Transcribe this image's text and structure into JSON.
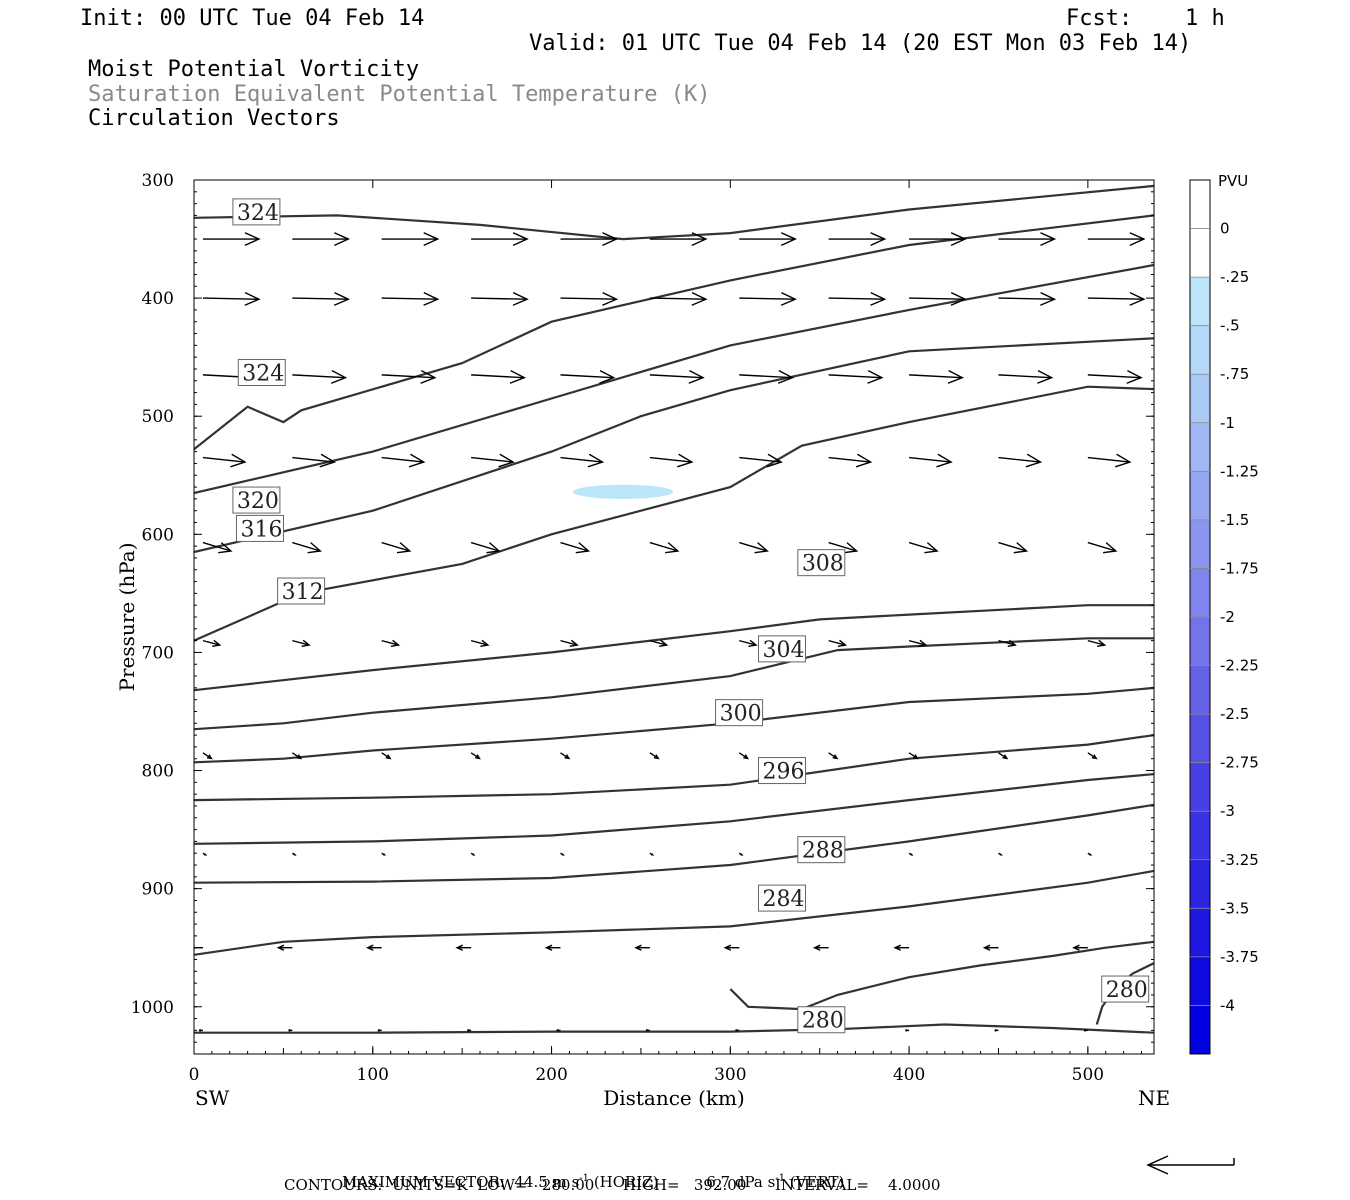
{
  "header": {
    "init": "Init: 00 UTC Tue 04 Feb 14",
    "fcst_label": "Fcst:",
    "fcst_value": "1 h",
    "valid": "Valid: 01 UTC Tue 04 Feb 14 (20 EST Mon 03 Feb 14)",
    "title1": "Moist Potential Vorticity",
    "title2": "Saturation Equivalent Potential Temperature (K)",
    "title3": "Circulation Vectors"
  },
  "colors": {
    "contour": "#333333",
    "vector": "#000000",
    "pv_fill": "#b9e6fb"
  },
  "chart_data": {
    "type": "cross-section",
    "xlabel": "Distance (km)",
    "ylabel": "Pressure (hPa)",
    "xlim": [
      0,
      537
    ],
    "ylim": [
      1040,
      300
    ],
    "y_scale": "linear-inverted",
    "x_ticks": [
      0,
      100,
      200,
      300,
      400,
      500
    ],
    "y_ticks": [
      300,
      400,
      500,
      600,
      700,
      800,
      900,
      1000
    ],
    "left_endpoint": "SW",
    "right_endpoint": "NE",
    "contours": [
      {
        "level": 280,
        "label": "280",
        "points": [
          [
            0,
            1022
          ],
          [
            100,
            1022
          ],
          [
            200,
            1021
          ],
          [
            300,
            1021
          ],
          [
            360,
            1019
          ],
          [
            420,
            1015
          ],
          [
            480,
            1018
          ],
          [
            537,
            1022
          ]
        ],
        "label_at": [
          340,
          1011
        ]
      },
      {
        "level": 280,
        "label": "280",
        "points": [
          [
            300,
            985
          ],
          [
            310,
            1000
          ],
          [
            340,
            1002
          ],
          [
            360,
            990
          ],
          [
            400,
            975
          ],
          [
            440,
            965
          ],
          [
            480,
            957
          ],
          [
            510,
            950
          ],
          [
            537,
            945
          ]
        ],
        "label_at": [
          510,
          985
        ]
      },
      {
        "level": 280,
        "label": "",
        "points": [
          [
            505,
            1015
          ],
          [
            508,
            1000
          ],
          [
            515,
            985
          ],
          [
            525,
            972
          ],
          [
            537,
            963
          ]
        ],
        "label_at": null
      },
      {
        "level": 284,
        "label": "284",
        "points": [
          [
            0,
            956
          ],
          [
            50,
            945
          ],
          [
            100,
            941
          ],
          [
            200,
            937
          ],
          [
            300,
            932
          ],
          [
            400,
            915
          ],
          [
            500,
            895
          ],
          [
            537,
            885
          ]
        ],
        "label_at": [
          318,
          908
        ]
      },
      {
        "level": 288,
        "label": "288",
        "points": [
          [
            0,
            895
          ],
          [
            100,
            894
          ],
          [
            200,
            891
          ],
          [
            300,
            880
          ],
          [
            400,
            860
          ],
          [
            500,
            838
          ],
          [
            537,
            829
          ]
        ],
        "label_at": [
          340,
          867
        ]
      },
      {
        "level": 292,
        "label": "",
        "points": [
          [
            0,
            862
          ],
          [
            100,
            860
          ],
          [
            200,
            855
          ],
          [
            300,
            843
          ],
          [
            400,
            825
          ],
          [
            500,
            808
          ],
          [
            537,
            803
          ]
        ],
        "label_at": null
      },
      {
        "level": 296,
        "label": "296",
        "points": [
          [
            0,
            825
          ],
          [
            100,
            823
          ],
          [
            200,
            820
          ],
          [
            300,
            812
          ],
          [
            400,
            790
          ],
          [
            500,
            778
          ],
          [
            537,
            770
          ]
        ],
        "label_at": [
          318,
          800
        ]
      },
      {
        "level": 300,
        "label": "300",
        "points": [
          [
            0,
            793
          ],
          [
            50,
            790
          ],
          [
            100,
            783
          ],
          [
            200,
            773
          ],
          [
            300,
            760
          ],
          [
            400,
            742
          ],
          [
            500,
            735
          ],
          [
            537,
            730
          ]
        ],
        "label_at": [
          294,
          751
        ]
      },
      {
        "level": 304,
        "label": "304",
        "points": [
          [
            0,
            765
          ],
          [
            50,
            760
          ],
          [
            100,
            751
          ],
          [
            200,
            738
          ],
          [
            300,
            720
          ],
          [
            360,
            698
          ],
          [
            400,
            695
          ],
          [
            500,
            688
          ],
          [
            537,
            688
          ]
        ],
        "label_at": [
          318,
          697
        ]
      },
      {
        "level": 308,
        "label": "308",
        "points": [
          [
            0,
            732
          ],
          [
            100,
            715
          ],
          [
            200,
            700
          ],
          [
            300,
            682
          ],
          [
            350,
            672
          ],
          [
            400,
            668
          ],
          [
            500,
            660
          ],
          [
            537,
            660
          ]
        ],
        "label_at": [
          340,
          624
        ]
      },
      {
        "level": 312,
        "label": "312",
        "points": [
          [
            0,
            690
          ],
          [
            60,
            650
          ],
          [
            150,
            625
          ],
          [
            200,
            600
          ],
          [
            300,
            560
          ],
          [
            340,
            525
          ],
          [
            400,
            505
          ],
          [
            500,
            475
          ],
          [
            537,
            477
          ]
        ],
        "label_at": [
          49,
          648
        ]
      },
      {
        "level": 316,
        "label": "316",
        "points": [
          [
            0,
            615
          ],
          [
            100,
            580
          ],
          [
            200,
            530
          ],
          [
            250,
            500
          ],
          [
            300,
            478
          ],
          [
            400,
            445
          ],
          [
            537,
            434
          ]
        ],
        "label_at": [
          26,
          595
        ]
      },
      {
        "level": 320,
        "label": "320",
        "points": [
          [
            0,
            565
          ],
          [
            100,
            530
          ],
          [
            200,
            485
          ],
          [
            300,
            440
          ],
          [
            400,
            410
          ],
          [
            537,
            372
          ]
        ],
        "label_at": [
          24,
          571
        ]
      },
      {
        "level": 324,
        "label": "324",
        "points": [
          [
            0,
            528
          ],
          [
            30,
            492
          ],
          [
            50,
            505
          ],
          [
            60,
            495
          ],
          [
            150,
            455
          ],
          [
            200,
            420
          ],
          [
            300,
            385
          ],
          [
            400,
            355
          ],
          [
            537,
            330
          ]
        ],
        "label_at": [
          27,
          463
        ]
      },
      {
        "level": 324,
        "label": "324",
        "points": [
          [
            0,
            332
          ],
          [
            80,
            330
          ],
          [
            160,
            338
          ],
          [
            240,
            350
          ],
          [
            300,
            345
          ],
          [
            400,
            325
          ],
          [
            537,
            305
          ]
        ],
        "label_at": [
          24,
          327
        ]
      }
    ],
    "pv_shaded": [
      {
        "label": "-0.25 to 0 PVU",
        "center": [
          240,
          564
        ],
        "rx": 28,
        "ry": 6
      }
    ],
    "vectors": [
      {
        "p": 350,
        "xs": [
          5,
          55,
          105,
          155,
          205,
          255,
          305,
          355,
          400,
          450,
          500
        ],
        "u": 1.0,
        "w": 0.0
      },
      {
        "p": 400,
        "xs": [
          5,
          55,
          105,
          155,
          205,
          255,
          305,
          355,
          400,
          450,
          500
        ],
        "u": 1.0,
        "w": 0.02
      },
      {
        "p": 465,
        "xs": [
          5,
          55,
          105,
          155,
          205,
          255,
          305,
          355,
          400,
          450,
          500
        ],
        "u": 0.95,
        "w": 0.05
      },
      {
        "p": 535,
        "xs": [
          5,
          55,
          105,
          155,
          205,
          255,
          305,
          355,
          400,
          450,
          500
        ],
        "u": 0.75,
        "w": 0.08
      },
      {
        "p": 607,
        "xs": [
          5,
          55,
          105,
          155,
          205,
          255,
          305,
          355,
          400,
          450,
          500
        ],
        "u": 0.5,
        "w": 0.15
      },
      {
        "p": 690,
        "xs": [
          5,
          55,
          105,
          155,
          205,
          255,
          305,
          355,
          400,
          450,
          500
        ],
        "u": 0.3,
        "w": 0.08
      },
      {
        "p": 785,
        "xs": [
          5,
          55,
          105,
          155,
          205,
          255,
          305,
          355,
          400,
          450,
          500
        ],
        "u": 0.15,
        "w": 0.1
      },
      {
        "p": 870,
        "xs": [
          5,
          55,
          105,
          155,
          205,
          255,
          305,
          355,
          400,
          450,
          500
        ],
        "u": 0.05,
        "w": 0.03
      },
      {
        "p": 950,
        "xs": [
          5,
          55,
          105,
          155,
          205,
          255,
          305,
          355,
          400,
          450,
          500
        ],
        "u": -0.25,
        "w": 0.0
      },
      {
        "p": 1020,
        "xs": [
          5,
          55,
          105,
          155,
          205,
          255,
          305,
          355,
          400,
          450,
          500
        ],
        "u": -0.05,
        "w": 0.0
      }
    ],
    "colorbar": {
      "title": "PVU",
      "labels": [
        "0",
        "-.25",
        "-.5",
        "-.75",
        "-1",
        "-1.25",
        "-1.5",
        "-1.75",
        "-2",
        "-2.25",
        "-2.5",
        "-2.75",
        "-3",
        "-3.25",
        "-3.5",
        "-3.75",
        "-4"
      ],
      "colors": [
        "#ffffff",
        "#ffffff",
        "#bde5fb",
        "#b3d8f9",
        "#aac9f6",
        "#a0b8f3",
        "#95a6f1",
        "#8b95ee",
        "#8084ec",
        "#7473ea",
        "#6662e8",
        "#5751e6",
        "#4840e4",
        "#3a32e3",
        "#2b25e2",
        "#1d17e1",
        "#0f0ae0",
        "#0000e0"
      ]
    }
  },
  "footer": {
    "max_vector_label": "MAXIMUM VECTOR:",
    "max_vector_horiz": "44.5",
    "max_vector_horiz_units": "m s",
    "max_vector_horiz_exp": "-1",
    "max_vector_horiz_tag": "(HORIZ)",
    "max_vector_vert": "6.7",
    "max_vector_vert_units": "dPa s",
    "max_vector_vert_exp": "-1",
    "max_vector_vert_tag": "(VERT)",
    "contours_line": "CONTOURS:  UNITS=K  LOW=   280.00      HIGH=   392.00      INTERVAL=    4.0000"
  }
}
